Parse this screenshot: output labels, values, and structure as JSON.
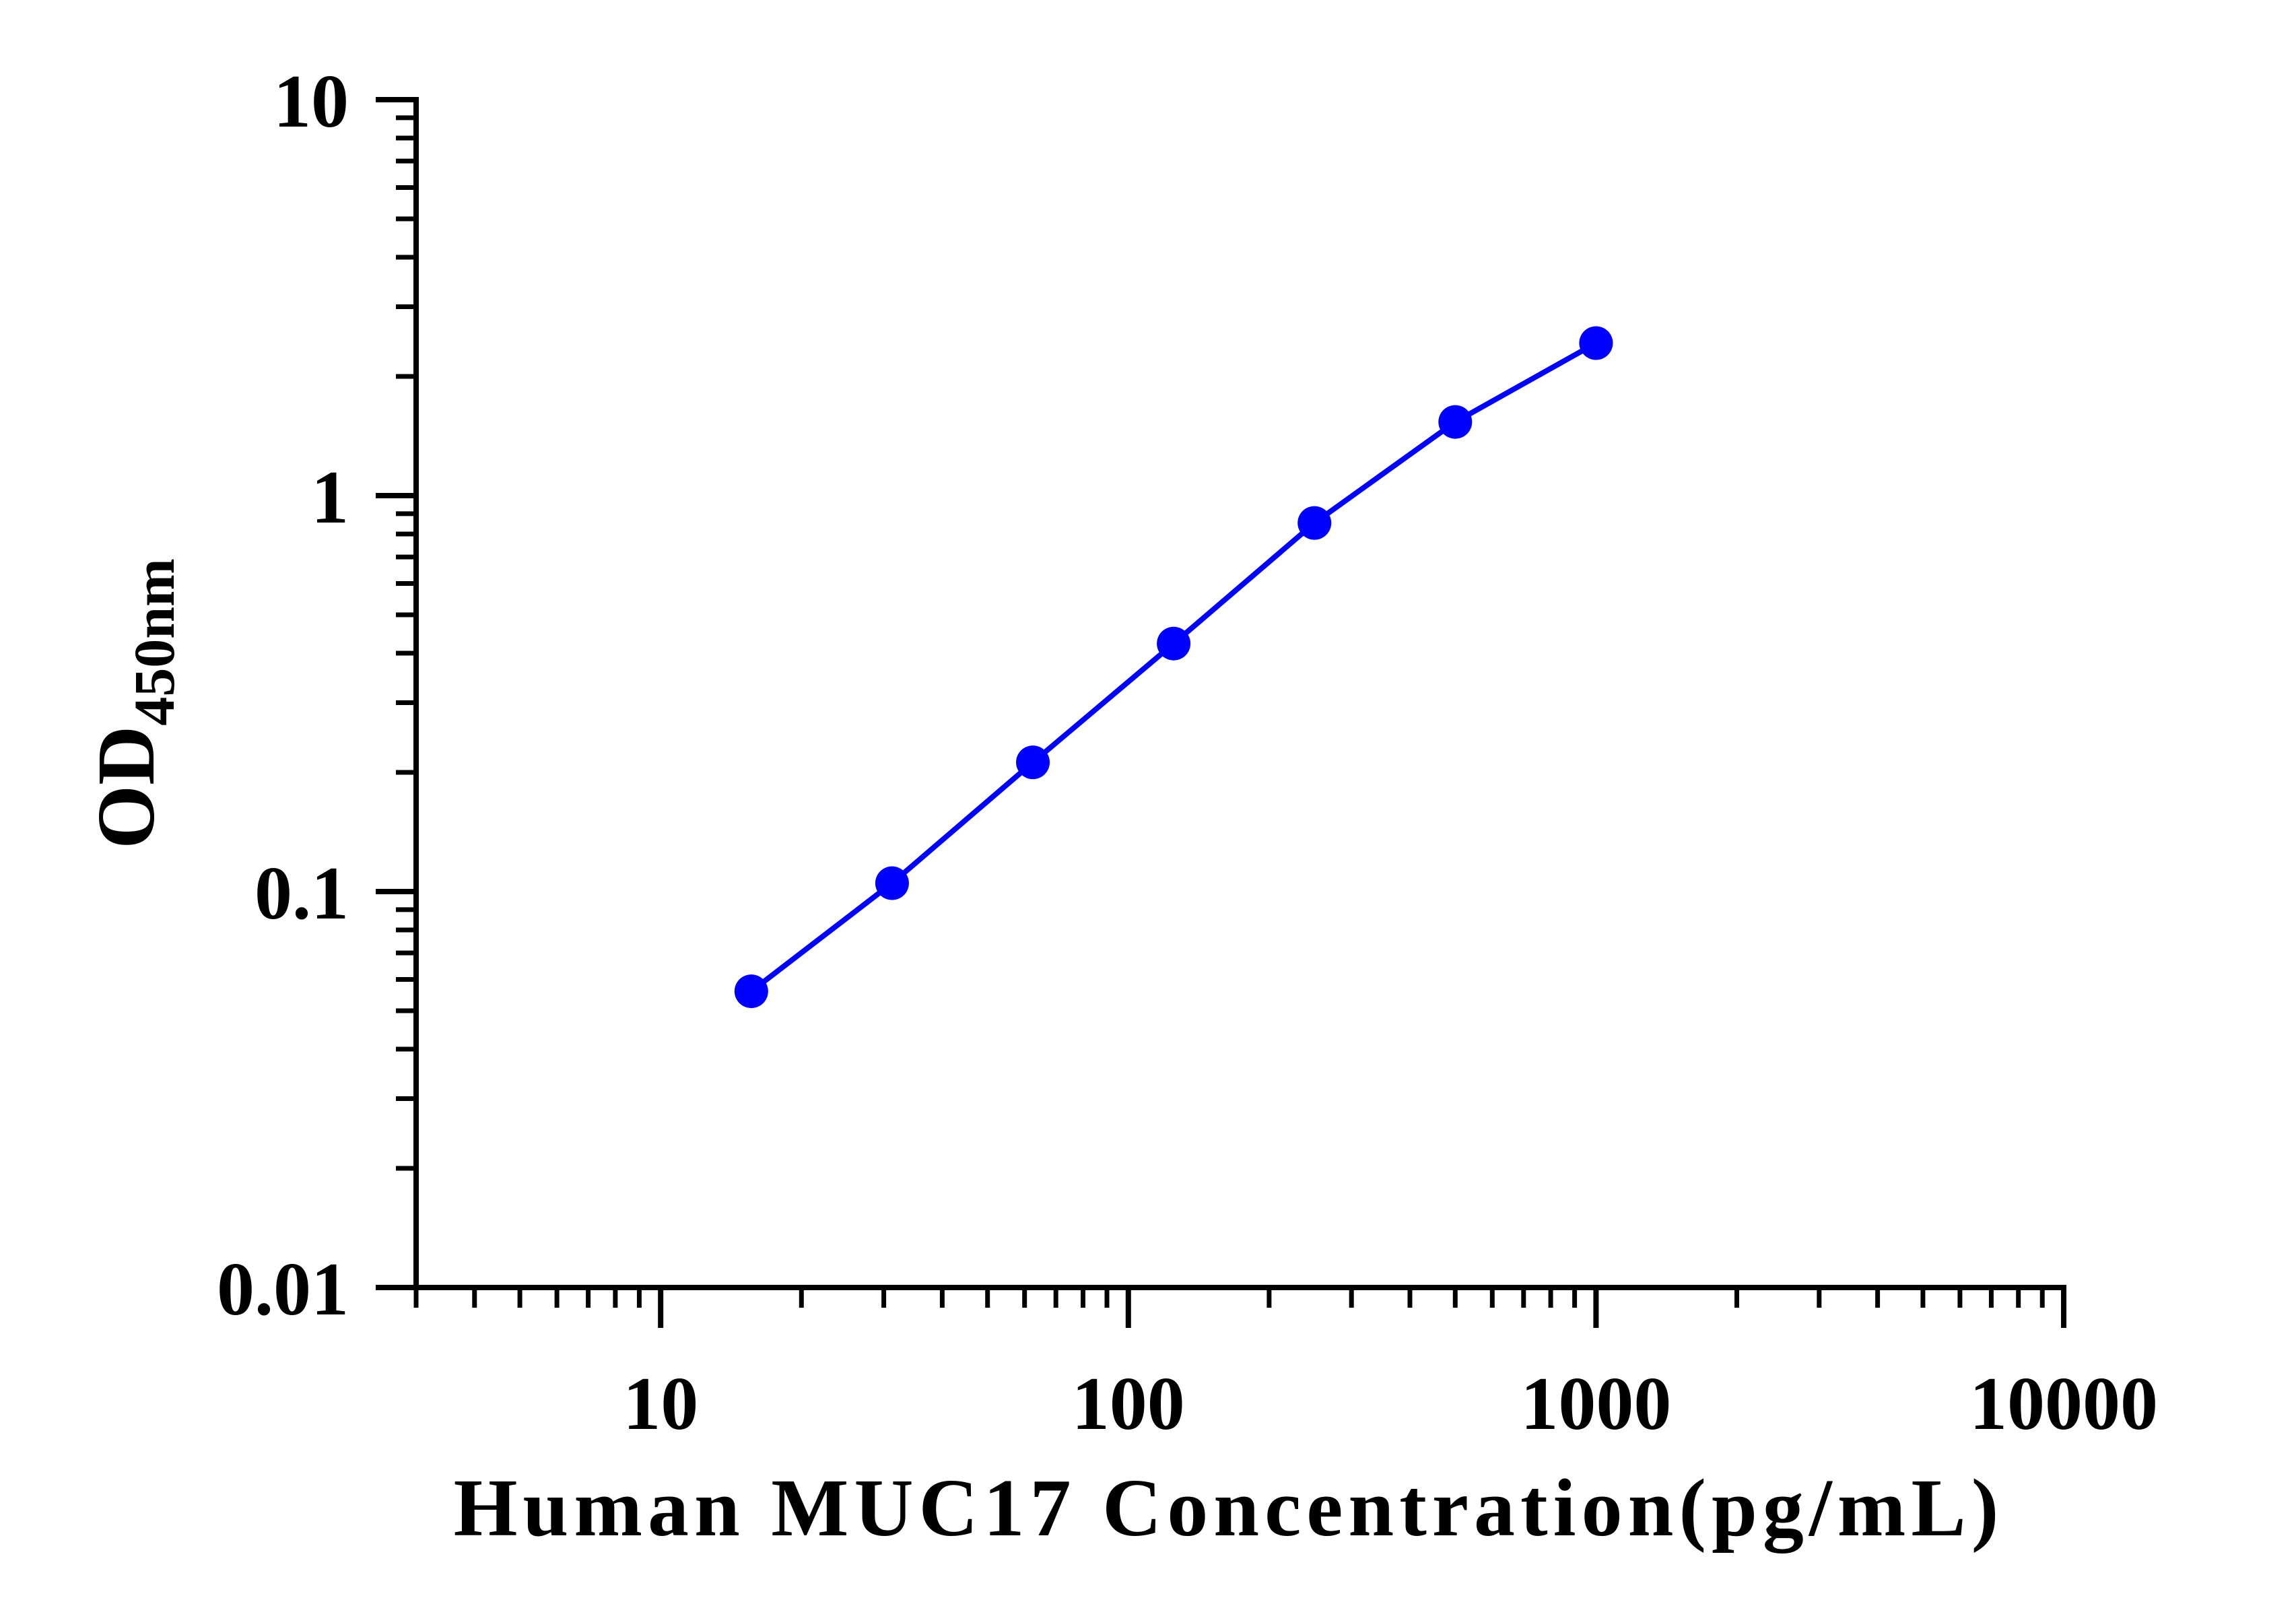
{
  "chart_data": {
    "type": "line",
    "title": "",
    "xlabel": "Human MUC17 Concentration(pg/mL)",
    "ylabel": "OD",
    "ylabel_subscript": "450nm",
    "x_scale": "log",
    "y_scale": "log",
    "xlim": [
      3,
      10000
    ],
    "ylim": [
      0.01,
      10
    ],
    "x_ticks": [
      10,
      100,
      1000,
      10000
    ],
    "x_tick_labels": [
      "10",
      "100",
      "1000",
      "10000"
    ],
    "y_ticks": [
      0.01,
      0.1,
      1,
      10
    ],
    "y_tick_labels": [
      "0.01",
      "0.1",
      "1",
      "10"
    ],
    "grid": false,
    "legend": "none",
    "series": [
      {
        "color": "#0000ff",
        "x": [
          15.625,
          31.25,
          62.5,
          125,
          250,
          500,
          1000
        ],
        "y": [
          0.056,
          0.105,
          0.212,
          0.423,
          0.853,
          1.535,
          2.428
        ]
      }
    ]
  }
}
